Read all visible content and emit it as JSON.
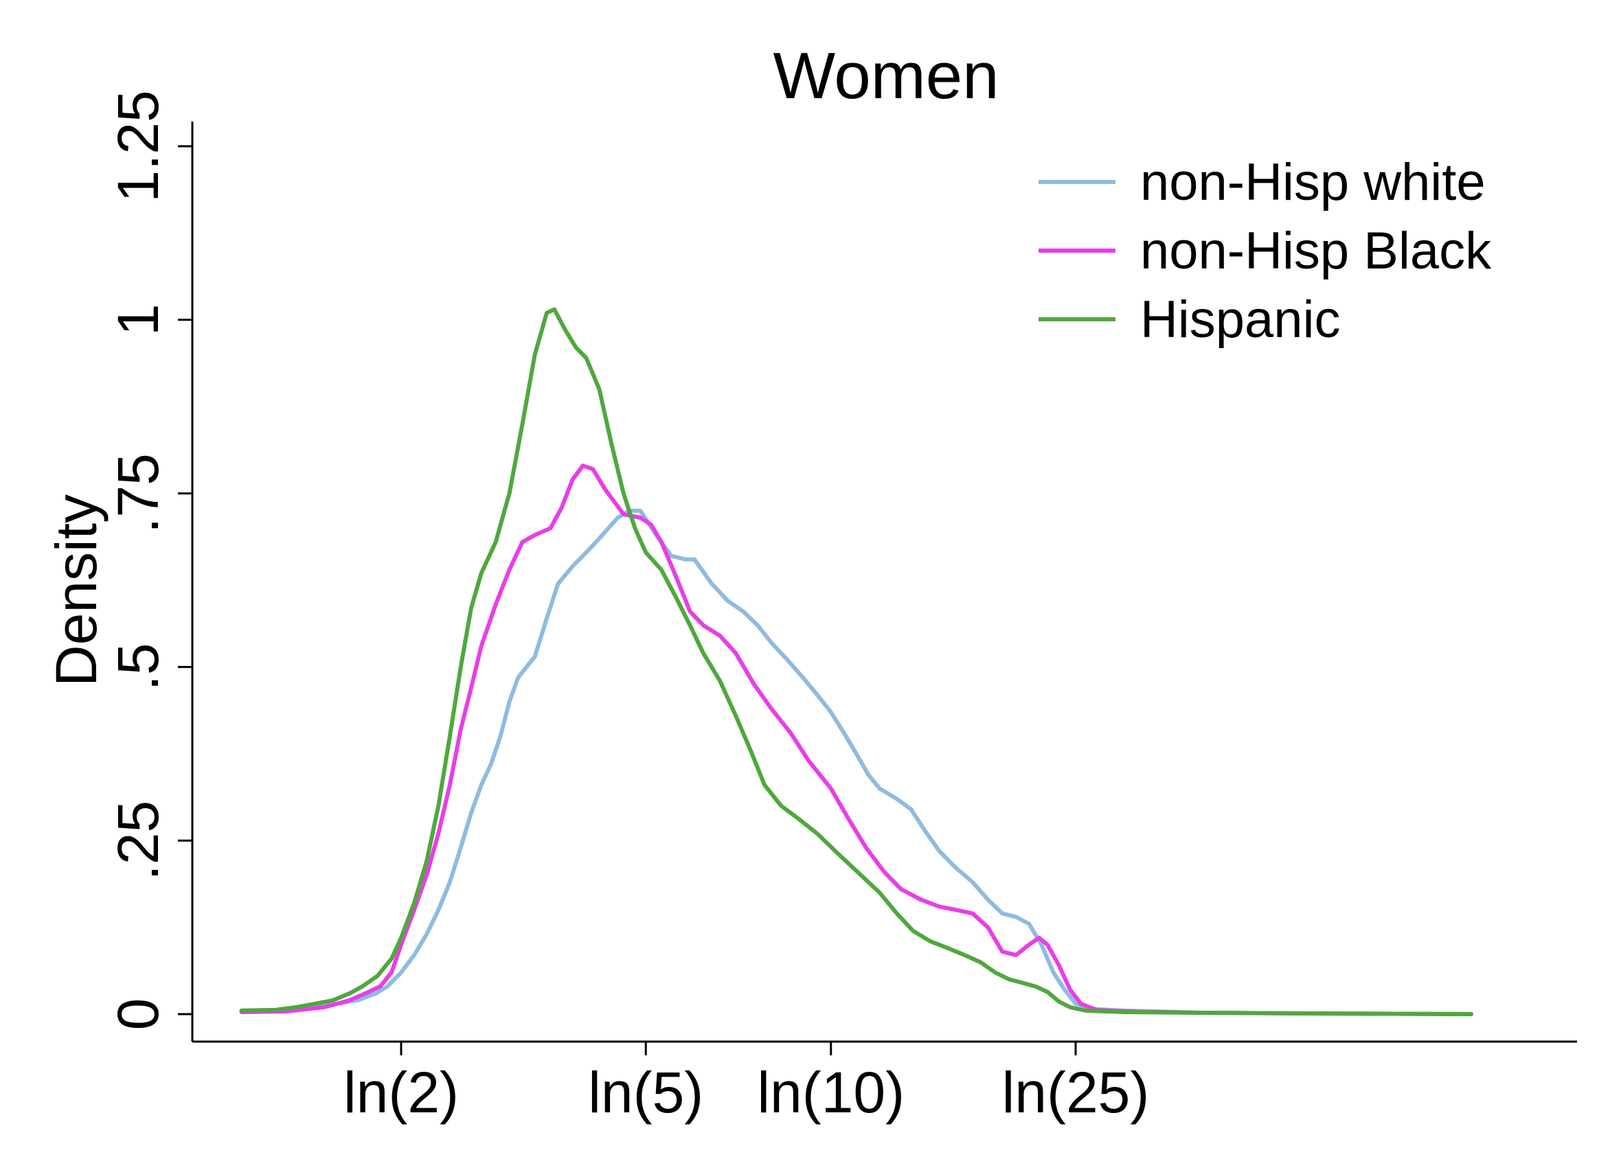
{
  "chart_data": {
    "type": "line",
    "title": "Women",
    "xlabel": "",
    "ylabel": "Density",
    "x_scale": "log",
    "xlim": [
      1.0,
      120
    ],
    "ylim": [
      0,
      1.25
    ],
    "grid": false,
    "legend_position": "top-right",
    "x_ticks": [
      {
        "value": 2,
        "label": "ln(2)"
      },
      {
        "value": 5,
        "label": "ln(5)"
      },
      {
        "value": 10,
        "label": "ln(10)"
      },
      {
        "value": 25,
        "label": "ln(25)"
      }
    ],
    "y_ticks": [
      {
        "value": 0,
        "label": "0"
      },
      {
        "value": 0.25,
        "label": ".25"
      },
      {
        "value": 0.5,
        "label": ".5"
      },
      {
        "value": 0.75,
        "label": ".75"
      },
      {
        "value": 1,
        "label": "1"
      },
      {
        "value": 1.25,
        "label": "1.25"
      }
    ],
    "series": [
      {
        "name": "non-Hisp white",
        "color": "#8fbbe0",
        "points": [
          [
            1.1,
            0.005
          ],
          [
            1.3,
            0.006
          ],
          [
            1.5,
            0.012
          ],
          [
            1.7,
            0.02
          ],
          [
            1.82,
            0.03
          ],
          [
            1.9,
            0.04
          ],
          [
            2.0,
            0.06
          ],
          [
            2.1,
            0.085
          ],
          [
            2.2,
            0.115
          ],
          [
            2.3,
            0.15
          ],
          [
            2.4,
            0.19
          ],
          [
            2.5,
            0.24
          ],
          [
            2.6,
            0.29
          ],
          [
            2.7,
            0.33
          ],
          [
            2.8,
            0.36
          ],
          [
            2.9,
            0.4
          ],
          [
            3.0,
            0.45
          ],
          [
            3.1,
            0.485
          ],
          [
            3.3,
            0.515
          ],
          [
            3.45,
            0.57
          ],
          [
            3.6,
            0.62
          ],
          [
            3.8,
            0.645
          ],
          [
            4.0,
            0.665
          ],
          [
            4.2,
            0.685
          ],
          [
            4.5,
            0.715
          ],
          [
            4.7,
            0.725
          ],
          [
            4.9,
            0.725
          ],
          [
            5.2,
            0.69
          ],
          [
            5.5,
            0.66
          ],
          [
            5.8,
            0.655
          ],
          [
            6.0,
            0.655
          ],
          [
            6.4,
            0.62
          ],
          [
            6.8,
            0.595
          ],
          [
            7.2,
            0.58
          ],
          [
            7.6,
            0.56
          ],
          [
            8.0,
            0.535
          ],
          [
            8.5,
            0.51
          ],
          [
            9.0,
            0.485
          ],
          [
            9.5,
            0.46
          ],
          [
            10.0,
            0.435
          ],
          [
            10.5,
            0.405
          ],
          [
            11.0,
            0.375
          ],
          [
            11.5,
            0.345
          ],
          [
            12.0,
            0.325
          ],
          [
            12.8,
            0.31
          ],
          [
            13.5,
            0.295
          ],
          [
            14.2,
            0.265
          ],
          [
            15.0,
            0.235
          ],
          [
            16.0,
            0.21
          ],
          [
            17.0,
            0.19
          ],
          [
            18.0,
            0.165
          ],
          [
            19.0,
            0.145
          ],
          [
            20.0,
            0.14
          ],
          [
            21.0,
            0.13
          ],
          [
            22.0,
            0.1
          ],
          [
            23.0,
            0.06
          ],
          [
            24.0,
            0.035
          ],
          [
            25.0,
            0.015
          ],
          [
            27.0,
            0.007
          ],
          [
            30.0,
            0.005
          ],
          [
            40.0,
            0.002
          ],
          [
            60.0,
            0.001
          ],
          [
            110.0,
            0.0
          ]
        ]
      },
      {
        "name": "non-Hisp Black",
        "color": "#e83ee8",
        "points": [
          [
            1.1,
            0.003
          ],
          [
            1.3,
            0.004
          ],
          [
            1.5,
            0.01
          ],
          [
            1.65,
            0.02
          ],
          [
            1.75,
            0.03
          ],
          [
            1.85,
            0.04
          ],
          [
            1.93,
            0.06
          ],
          [
            2.0,
            0.1
          ],
          [
            2.1,
            0.15
          ],
          [
            2.2,
            0.2
          ],
          [
            2.3,
            0.26
          ],
          [
            2.4,
            0.33
          ],
          [
            2.5,
            0.41
          ],
          [
            2.6,
            0.47
          ],
          [
            2.7,
            0.53
          ],
          [
            2.85,
            0.59
          ],
          [
            3.0,
            0.64
          ],
          [
            3.15,
            0.68
          ],
          [
            3.3,
            0.69
          ],
          [
            3.5,
            0.7
          ],
          [
            3.65,
            0.73
          ],
          [
            3.8,
            0.77
          ],
          [
            3.95,
            0.79
          ],
          [
            4.1,
            0.785
          ],
          [
            4.3,
            0.755
          ],
          [
            4.6,
            0.72
          ],
          [
            4.9,
            0.715
          ],
          [
            5.1,
            0.705
          ],
          [
            5.3,
            0.68
          ],
          [
            5.6,
            0.63
          ],
          [
            5.9,
            0.58
          ],
          [
            6.2,
            0.56
          ],
          [
            6.6,
            0.545
          ],
          [
            7.0,
            0.52
          ],
          [
            7.5,
            0.475
          ],
          [
            8.0,
            0.44
          ],
          [
            8.6,
            0.405
          ],
          [
            9.2,
            0.365
          ],
          [
            10.0,
            0.325
          ],
          [
            10.7,
            0.28
          ],
          [
            11.4,
            0.24
          ],
          [
            12.2,
            0.205
          ],
          [
            13.0,
            0.18
          ],
          [
            14.0,
            0.165
          ],
          [
            15.0,
            0.155
          ],
          [
            16.0,
            0.15
          ],
          [
            17.0,
            0.145
          ],
          [
            18.0,
            0.125
          ],
          [
            19.0,
            0.09
          ],
          [
            20.0,
            0.085
          ],
          [
            21.0,
            0.1
          ],
          [
            21.8,
            0.11
          ],
          [
            22.5,
            0.1
          ],
          [
            23.5,
            0.07
          ],
          [
            24.5,
            0.035
          ],
          [
            25.5,
            0.015
          ],
          [
            27.0,
            0.006
          ],
          [
            30.0,
            0.004
          ],
          [
            40.0,
            0.002
          ],
          [
            60.0,
            0.001
          ],
          [
            110.0,
            0.0
          ]
        ]
      },
      {
        "name": "Hispanic",
        "color": "#4fa83d",
        "points": [
          [
            1.1,
            0.005
          ],
          [
            1.25,
            0.006
          ],
          [
            1.35,
            0.01
          ],
          [
            1.45,
            0.015
          ],
          [
            1.55,
            0.02
          ],
          [
            1.65,
            0.03
          ],
          [
            1.73,
            0.04
          ],
          [
            1.83,
            0.055
          ],
          [
            1.93,
            0.08
          ],
          [
            2.0,
            0.11
          ],
          [
            2.1,
            0.16
          ],
          [
            2.2,
            0.22
          ],
          [
            2.3,
            0.3
          ],
          [
            2.4,
            0.4
          ],
          [
            2.5,
            0.5
          ],
          [
            2.6,
            0.585
          ],
          [
            2.7,
            0.635
          ],
          [
            2.85,
            0.68
          ],
          [
            3.0,
            0.75
          ],
          [
            3.15,
            0.85
          ],
          [
            3.3,
            0.95
          ],
          [
            3.45,
            1.01
          ],
          [
            3.55,
            1.015
          ],
          [
            3.7,
            0.985
          ],
          [
            3.85,
            0.96
          ],
          [
            4.0,
            0.945
          ],
          [
            4.2,
            0.9
          ],
          [
            4.4,
            0.82
          ],
          [
            4.6,
            0.75
          ],
          [
            4.8,
            0.7
          ],
          [
            5.0,
            0.665
          ],
          [
            5.3,
            0.64
          ],
          [
            5.6,
            0.6
          ],
          [
            5.9,
            0.56
          ],
          [
            6.2,
            0.52
          ],
          [
            6.6,
            0.48
          ],
          [
            7.0,
            0.43
          ],
          [
            7.4,
            0.38
          ],
          [
            7.8,
            0.33
          ],
          [
            8.3,
            0.3
          ],
          [
            8.9,
            0.28
          ],
          [
            9.5,
            0.26
          ],
          [
            10.3,
            0.23
          ],
          [
            11.2,
            0.2
          ],
          [
            12.0,
            0.175
          ],
          [
            12.8,
            0.145
          ],
          [
            13.6,
            0.12
          ],
          [
            14.5,
            0.105
          ],
          [
            15.5,
            0.095
          ],
          [
            16.5,
            0.085
          ],
          [
            17.5,
            0.075
          ],
          [
            18.5,
            0.06
          ],
          [
            19.5,
            0.05
          ],
          [
            20.5,
            0.045
          ],
          [
            21.5,
            0.04
          ],
          [
            22.5,
            0.032
          ],
          [
            23.5,
            0.018
          ],
          [
            24.5,
            0.01
          ],
          [
            26.0,
            0.005
          ],
          [
            30.0,
            0.003
          ],
          [
            40.0,
            0.002
          ],
          [
            60.0,
            0.001
          ],
          [
            110.0,
            0.0
          ]
        ]
      }
    ]
  }
}
